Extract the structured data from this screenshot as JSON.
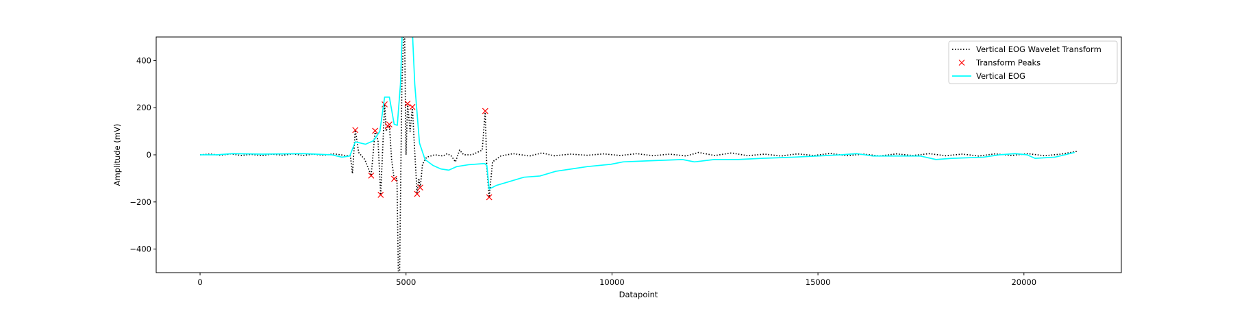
{
  "chart_data": {
    "type": "line",
    "x_label": "Datapoint",
    "y_label": "Amplitude (mV)",
    "xlim": [
      -1065,
      22365
    ],
    "ylim": [
      -500,
      500
    ],
    "xticks": [
      0,
      5000,
      10000,
      15000,
      20000
    ],
    "yticks": [
      {
        "value": -400,
        "label": "−400"
      },
      {
        "value": -200,
        "label": "−200"
      },
      0,
      200,
      400
    ],
    "legend": "upper right",
    "series": [
      {
        "name": "Vertical EOG Wavelet Transform",
        "color": "#000000",
        "linestyle": "dotted",
        "x": [
          0,
          250,
          500,
          750,
          1000,
          1250,
          1500,
          1750,
          2000,
          2250,
          2500,
          2750,
          3000,
          3250,
          3500,
          3650,
          3700,
          3769,
          3850,
          4000,
          4154,
          4250,
          4320,
          4385,
          4481,
          4520,
          4558,
          4596,
          4650,
          4712,
          4780,
          4830,
          4900,
          4960,
          5000,
          5038,
          5100,
          5154,
          5200,
          5269,
          5310,
          5346,
          5400,
          5500,
          5700,
          5900,
          6000,
          6100,
          6200,
          6300,
          6400,
          6600,
          6850,
          6923,
          6960,
          7019,
          7100,
          7300,
          7600,
          8000,
          8300,
          8600,
          9000,
          9400,
          9800,
          10200,
          10600,
          11000,
          11400,
          11800,
          12100,
          12500,
          12900,
          13300,
          13700,
          14100,
          14500,
          14900,
          15300,
          15700,
          16100,
          16500,
          16900,
          17300,
          17700,
          18100,
          18500,
          18900,
          19300,
          19700,
          20100,
          20500,
          20900,
          21300
        ],
        "values": [
          0,
          3,
          -2,
          4,
          -3,
          2,
          -4,
          3,
          -2,
          4,
          -3,
          3,
          -2,
          4,
          -2,
          -5,
          -80,
          105,
          10,
          -20,
          -88,
          102,
          60,
          -170,
          214,
          100,
          122,
          129,
          -20,
          -102,
          -100,
          -700,
          300,
          600,
          0,
          217,
          100,
          203,
          50,
          -166,
          -100,
          -139,
          -40,
          -10,
          0,
          -5,
          5,
          -5,
          -30,
          20,
          0,
          0,
          20,
          186,
          -50,
          -180,
          -30,
          -5,
          5,
          -5,
          8,
          -4,
          3,
          -2,
          4,
          -3,
          5,
          -4,
          3,
          -5,
          10,
          -3,
          8,
          -4,
          3,
          -5,
          4,
          -3,
          6,
          -4,
          3,
          -5,
          4,
          -3,
          5,
          -4,
          3,
          -5,
          4,
          -3,
          5,
          -4,
          3,
          15
        ]
      },
      {
        "name": "Transform Peaks",
        "color": "#ff0000",
        "marker": "x",
        "x": [
          3769,
          4154,
          4250,
          4385,
          4481,
          4558,
          4596,
          4712,
          5038,
          5154,
          5269,
          5346,
          6923,
          7019
        ],
        "values": [
          105,
          -88,
          102,
          -170,
          214,
          122,
          129,
          -102,
          217,
          203,
          -166,
          -139,
          186,
          -180
        ]
      },
      {
        "name": "Vertical EOG",
        "color": "#00ffff",
        "linestyle": "solid",
        "x": [
          0,
          400,
          800,
          1500,
          2500,
          3200,
          3442,
          3635,
          3769,
          4019,
          4212,
          4365,
          4481,
          4596,
          4712,
          4788,
          4865,
          4923,
          5135,
          5212,
          5327,
          5462,
          5654,
          5846,
          6038,
          6231,
          6519,
          6904,
          6962,
          7019,
          7192,
          7481,
          7865,
          8250,
          8635,
          9019,
          9404,
          9981,
          10269,
          10942,
          11712,
          12000,
          12481,
          13058,
          13635,
          14404,
          14981,
          15558,
          15942,
          16327,
          16904,
          17481,
          17865,
          18250,
          19019,
          19404,
          19788,
          20077,
          20269,
          20750,
          21231
        ],
        "values": [
          0,
          0,
          5,
          3,
          5,
          0,
          -10,
          -5,
          55,
          45,
          60,
          100,
          245,
          245,
          130,
          125,
          300,
          600,
          600,
          300,
          50,
          -20,
          -45,
          -60,
          -65,
          -50,
          -42,
          -37,
          -45,
          -145,
          -130,
          -115,
          -95,
          -90,
          -70,
          -60,
          -50,
          -40,
          -30,
          -25,
          -20,
          -30,
          -20,
          -20,
          -15,
          -10,
          -5,
          0,
          5,
          -5,
          -5,
          -5,
          -20,
          -15,
          -10,
          0,
          5,
          0,
          -15,
          -10,
          10
        ]
      }
    ]
  }
}
